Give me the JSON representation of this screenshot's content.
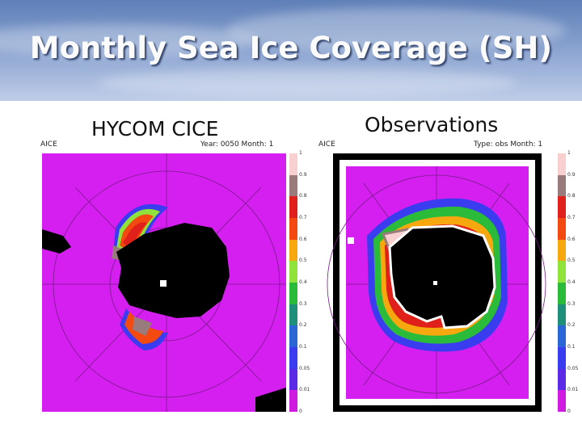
{
  "slide": {
    "title": "Monthly Sea Ice Coverage (SH)"
  },
  "left_panel": {
    "label": "HYCOM CICE",
    "corner_left": "AICE",
    "corner_right": "Year: 0050 Month: 1"
  },
  "right_panel": {
    "label": "Observations",
    "corner_left": "AICE",
    "corner_right": "Type: obs Month: 1"
  },
  "colorbar": {
    "ticks": [
      "1",
      "0.9",
      "0.8",
      "0.7",
      "0.6",
      "0.5",
      "0.4",
      "0.3",
      "0.2",
      "0.1",
      "0.05",
      "0.01",
      "0"
    ],
    "colors": [
      "#f9d0d0",
      "#9a7b7b",
      "#e0201a",
      "#f24a10",
      "#f7a80f",
      "#8fe33a",
      "#2bbb3a",
      "#1f8f7a",
      "#2a66d6",
      "#3a3cf0",
      "#5a2ae6",
      "#d01be0"
    ]
  },
  "colors": {
    "ocean_ice_free": "#d41ff0",
    "land": "#000000",
    "coast_white": "#ffffff"
  }
}
